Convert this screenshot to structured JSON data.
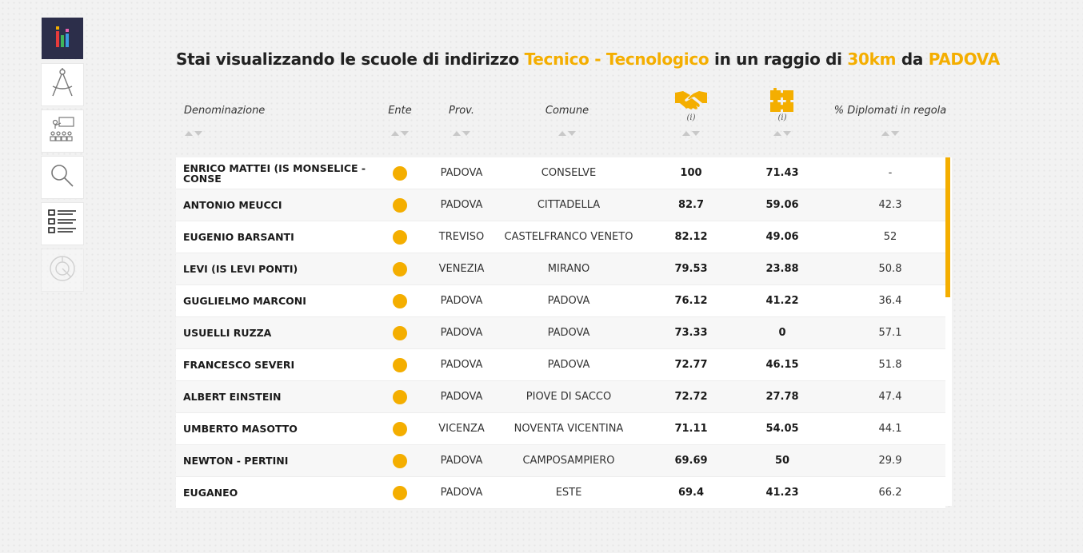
{
  "heading": {
    "prefix": "Stai visualizzando le scuole di indirizzo ",
    "indirizzo": "Tecnico - Tecnologico",
    "middle": " in un raggio di ",
    "radius": "30km",
    "connector": " da ",
    "city": "PADOVA"
  },
  "sidebar": {
    "items": [
      {
        "icon": "bar-chart-logo-icon",
        "active": true
      },
      {
        "icon": "compass-icon"
      },
      {
        "icon": "classroom-icon"
      },
      {
        "icon": "magnifier-icon"
      },
      {
        "icon": "checklist-icon"
      },
      {
        "icon": "pie-chart-icon",
        "disabled": true
      }
    ]
  },
  "columns": {
    "name": "Denominazione",
    "ente": "Ente",
    "prov": "Prov.",
    "comune": "Comune",
    "col1_icon": "handshake-icon",
    "col1_info": "(i)",
    "col2_icon": "puzzle-icon",
    "col2_info": "(i)",
    "col3": "% Diplomati in regola"
  },
  "colors": {
    "accent": "#f4ae00",
    "sidebar_active": "#2c2e4a"
  },
  "rows": [
    {
      "name": "ENRICO MATTEI (IS MONSELICE - CONSE",
      "prov": "PADOVA",
      "comune": "CONSELVE",
      "v1": "100",
      "v2": "71.43",
      "v3": "-"
    },
    {
      "name": "ANTONIO MEUCCI",
      "prov": "PADOVA",
      "comune": "CITTADELLA",
      "v1": "82.7",
      "v2": "59.06",
      "v3": "42.3"
    },
    {
      "name": "EUGENIO BARSANTI",
      "prov": "TREVISO",
      "comune": "CASTELFRANCO VENETO",
      "v1": "82.12",
      "v2": "49.06",
      "v3": "52"
    },
    {
      "name": "LEVI (IS LEVI PONTI)",
      "prov": "VENEZIA",
      "comune": "MIRANO",
      "v1": "79.53",
      "v2": "23.88",
      "v3": "50.8"
    },
    {
      "name": "GUGLIELMO MARCONI",
      "prov": "PADOVA",
      "comune": "PADOVA",
      "v1": "76.12",
      "v2": "41.22",
      "v3": "36.4"
    },
    {
      "name": "USUELLI RUZZA",
      "prov": "PADOVA",
      "comune": "PADOVA",
      "v1": "73.33",
      "v2": "0",
      "v3": "57.1"
    },
    {
      "name": "FRANCESCO SEVERI",
      "prov": "PADOVA",
      "comune": "PADOVA",
      "v1": "72.77",
      "v2": "46.15",
      "v3": "51.8"
    },
    {
      "name": "ALBERT EINSTEIN",
      "prov": "PADOVA",
      "comune": "PIOVE DI SACCO",
      "v1": "72.72",
      "v2": "27.78",
      "v3": "47.4"
    },
    {
      "name": "UMBERTO MASOTTO",
      "prov": "VICENZA",
      "comune": "NOVENTA VICENTINA",
      "v1": "71.11",
      "v2": "54.05",
      "v3": "44.1"
    },
    {
      "name": "NEWTON - PERTINI",
      "prov": "PADOVA",
      "comune": "CAMPOSAMPIERO",
      "v1": "69.69",
      "v2": "50",
      "v3": "29.9"
    },
    {
      "name": "EUGANEO",
      "prov": "PADOVA",
      "comune": "ESTE",
      "v1": "69.4",
      "v2": "41.23",
      "v3": "66.2"
    }
  ]
}
